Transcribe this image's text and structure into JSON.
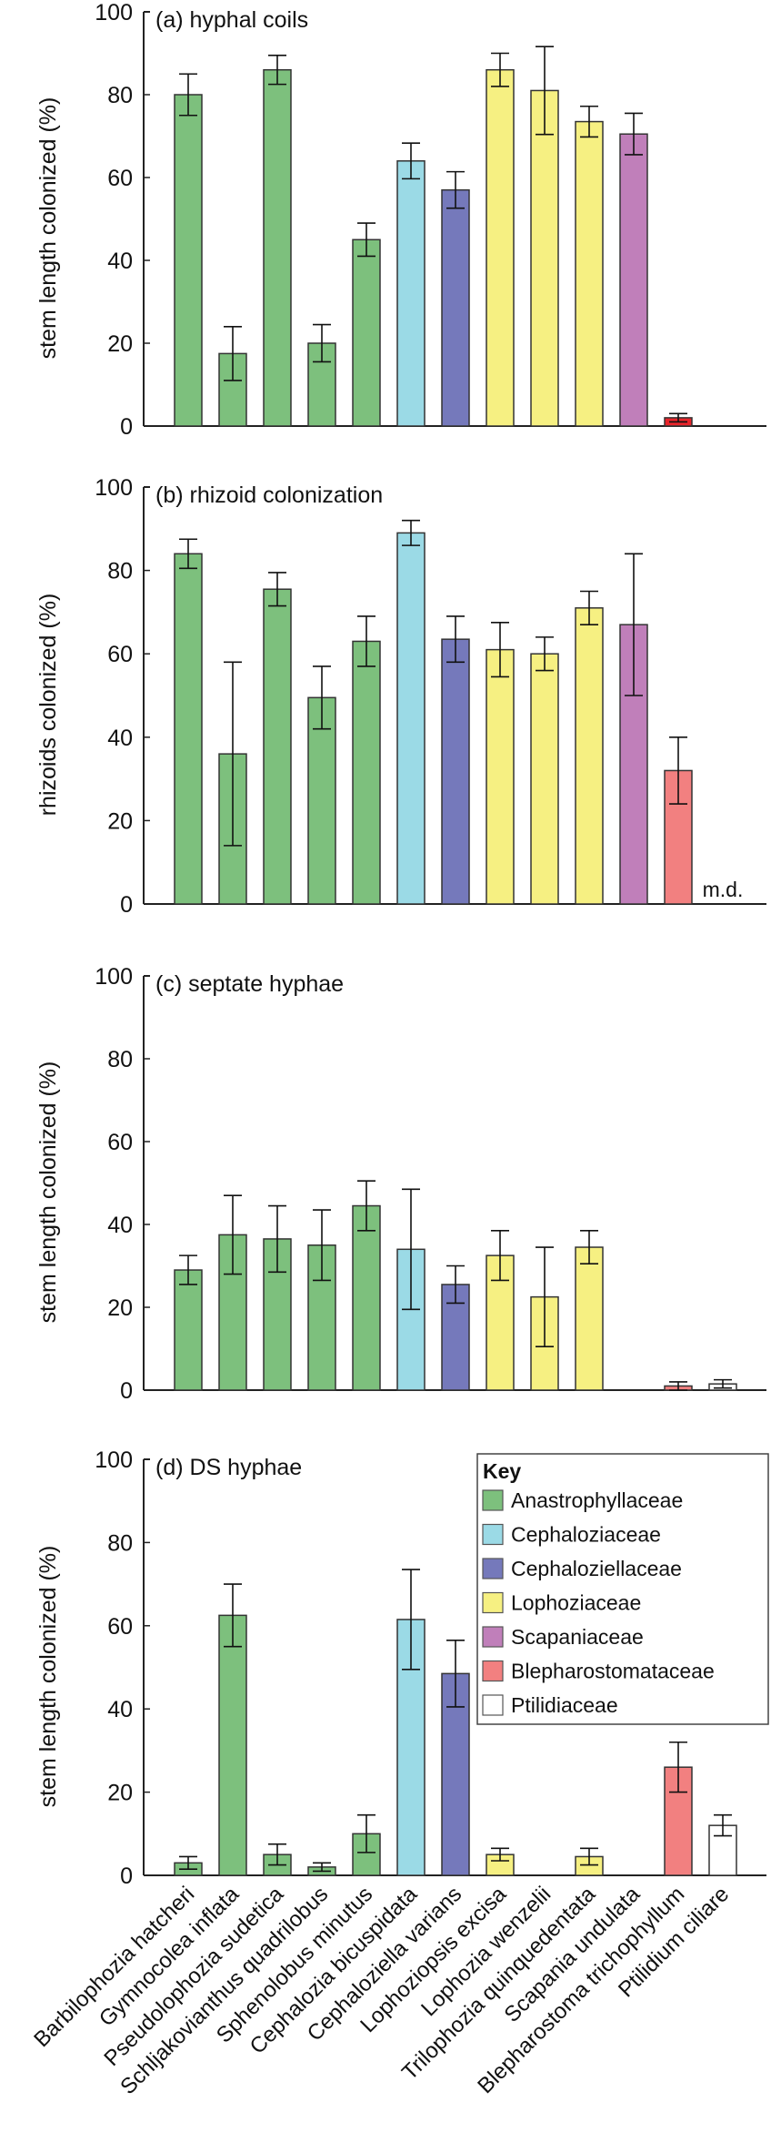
{
  "chart_data": {
    "type": "bar",
    "categories": [
      "Barbilophozia hatcheri",
      "Gymnocolea inflata",
      "Pseudolophozia sudetica",
      "Schljakovianthus quadrilobus",
      "Sphenolobus minutus",
      "Cephalozia bicuspidata",
      "Cephaloziella varians",
      "Lophoziopsis excisa",
      "Lophozia wenzelii",
      "Trilophozia quinquedentata",
      "Scapania undulata",
      "Blepharostoma trichophyllum",
      "Ptilidium ciliare"
    ],
    "category_family": [
      "Anastrophyllaceae",
      "Anastrophyllaceae",
      "Anastrophyllaceae",
      "Anastrophyllaceae",
      "Anastrophyllaceae",
      "Cephaloziaceae",
      "Cephaloziellaceae",
      "Lophoziaceae",
      "Lophoziaceae",
      "Lophoziaceae",
      "Scapaniaceae",
      "Blepharostomataceae",
      "Ptilidiaceae"
    ],
    "legend": {
      "title": "Key",
      "placement": "top-right of panel (d)",
      "entries": [
        {
          "name": "Anastrophyllaceae",
          "color": "#7dc07d"
        },
        {
          "name": "Cephaloziaceae",
          "color": "#9bdae6"
        },
        {
          "name": "Cephaloziellaceae",
          "color": "#7579bb"
        },
        {
          "name": "Lophoziaceae",
          "color": "#f6f082"
        },
        {
          "name": "Scapaniaceae",
          "color": "#c07fba"
        },
        {
          "name": "Blepharostomataceae",
          "color": "#f28080"
        },
        {
          "name": "Ptilidiaceae",
          "color": "#ffffff"
        }
      ]
    },
    "panels": [
      {
        "title": "(a) hyphal coils",
        "ylabel": "stem length colonized (%)",
        "ylim": [
          0,
          100
        ],
        "yticks": [
          0,
          20,
          40,
          60,
          80,
          100
        ],
        "values": [
          80,
          17.5,
          86,
          20,
          45,
          64,
          57,
          86,
          81,
          73.5,
          70.5,
          2,
          null
        ],
        "errors": [
          5,
          6.5,
          3.5,
          4.5,
          4,
          4.3,
          4.4,
          4,
          10.6,
          3.7,
          5,
          1,
          null
        ],
        "special_colors": {
          "11": "#e8242a"
        },
        "annotation": null
      },
      {
        "title": "(b) rhizoid colonization",
        "ylabel": "rhizoids colonized (%)",
        "ylim": [
          0,
          100
        ],
        "yticks": [
          0,
          20,
          40,
          60,
          80,
          100
        ],
        "values": [
          84,
          36,
          75.5,
          49.5,
          63,
          89,
          63.5,
          61,
          60,
          71,
          67,
          32,
          null
        ],
        "errors": [
          3.5,
          22,
          4,
          7.5,
          6,
          3,
          5.5,
          6.5,
          4,
          4,
          17,
          8,
          null
        ],
        "special_colors": {},
        "annotation": "m.d."
      },
      {
        "title": "(c) septate hyphae",
        "ylabel": "stem length colonized (%)",
        "ylim": [
          0,
          100
        ],
        "yticks": [
          0,
          20,
          40,
          60,
          80,
          100
        ],
        "values": [
          29,
          37.5,
          36.5,
          35,
          44.5,
          34,
          25.5,
          32.5,
          22.5,
          34.5,
          null,
          1,
          1.5
        ],
        "errors": [
          3.5,
          9.5,
          8,
          8.5,
          6,
          14.5,
          4.5,
          6,
          12,
          4,
          null,
          1,
          1
        ],
        "special_colors": {},
        "annotation": null
      },
      {
        "title": "(d) DS hyphae",
        "ylabel": "stem length colonized (%)",
        "ylim": [
          0,
          100
        ],
        "yticks": [
          0,
          20,
          40,
          60,
          80,
          100
        ],
        "values": [
          3,
          62.5,
          5,
          2,
          10,
          61.5,
          48.5,
          5,
          null,
          4.5,
          null,
          26,
          12
        ],
        "errors": [
          1.5,
          7.5,
          2.5,
          1,
          4.5,
          12,
          8,
          1.5,
          null,
          2,
          null,
          6,
          2.5
        ],
        "special_colors": {},
        "annotation": null,
        "has_legend": true
      }
    ]
  }
}
